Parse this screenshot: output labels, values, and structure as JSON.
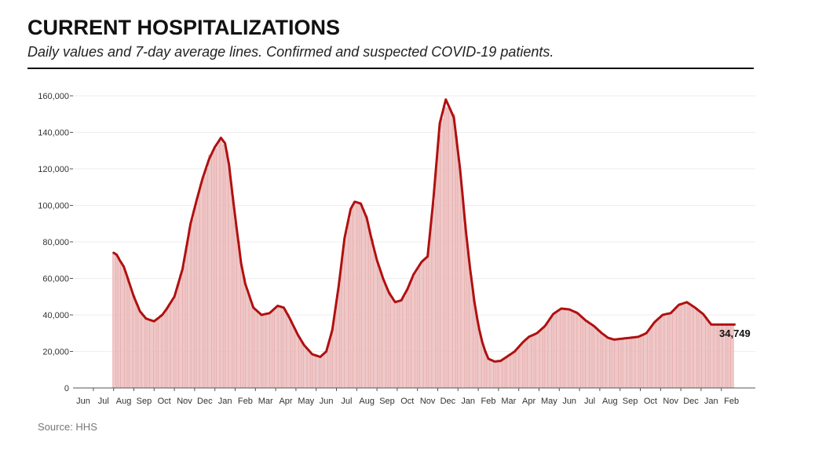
{
  "header": {
    "title": "CURRENT HOSPITALIZATIONS",
    "subtitle": "Daily values and 7-day average lines. Confirmed and suspected COVID-19 patients."
  },
  "footer": {
    "source": "Source: HHS"
  },
  "colors": {
    "line": "#b01010",
    "bars": "#f0c8c8",
    "bar_stroke": "#d98a8a",
    "grid": "#eeeeee"
  },
  "chart_data": {
    "type": "area",
    "title": "CURRENT HOSPITALIZATIONS",
    "xlabel": "",
    "ylabel": "",
    "ylim": [
      0,
      160000
    ],
    "yticks": [
      0,
      20000,
      40000,
      60000,
      80000,
      100000,
      120000,
      140000,
      160000
    ],
    "ytick_labels": [
      "0",
      "20,000",
      "40,000",
      "60,000",
      "80,000",
      "100,000",
      "120,000",
      "140,000",
      "160,000"
    ],
    "x_ticks": [
      "Jun",
      "Jul",
      "Aug",
      "Sep",
      "Oct",
      "Nov",
      "Dec",
      "Jan",
      "Feb",
      "Mar",
      "Apr",
      "May",
      "Jun",
      "Jul",
      "Aug",
      "Sep",
      "Oct",
      "Nov",
      "Dec",
      "Jan",
      "Feb",
      "Mar",
      "Apr",
      "May",
      "Jun",
      "Jul",
      "Aug",
      "Sep",
      "Oct",
      "Nov",
      "Dec",
      "Jan",
      "Feb"
    ],
    "x_unit": "month index (0 = Jun 2020)",
    "grid": true,
    "series": [
      {
        "x": [
          1.5,
          1.65,
          1.8,
          2.0,
          2.2,
          2.5,
          2.8,
          3.1,
          3.5,
          3.9,
          4.1,
          4.5,
          4.9,
          5.3,
          5.6,
          5.9,
          6.2,
          6.5,
          6.8,
          7.0,
          7.2,
          7.4,
          7.6,
          7.8,
          8.0,
          8.4,
          8.8,
          9.2,
          9.6,
          9.9,
          10.2,
          10.6,
          10.9,
          11.3,
          11.7,
          12.0,
          12.3,
          12.6,
          12.9,
          13.2,
          13.4,
          13.7,
          14.0,
          14.2,
          14.5,
          14.8,
          15.1,
          15.4,
          15.7,
          16.0,
          16.3,
          16.7,
          17.0,
          17.3,
          17.6,
          17.9,
          18.3,
          18.6,
          18.9,
          19.1,
          19.3,
          19.45,
          19.55,
          19.7,
          19.85,
          20.0,
          20.3,
          20.6,
          20.9,
          21.3,
          21.7,
          22.0,
          22.4,
          22.8,
          23.2,
          23.6,
          24.0,
          24.4,
          24.8,
          25.2,
          25.6,
          25.9,
          26.2,
          26.6,
          27.0,
          27.4,
          27.8,
          28.2,
          28.6,
          29.0,
          29.4,
          29.8,
          30.2,
          30.6,
          31.0,
          31.2,
          31.4,
          31.55,
          31.7,
          31.8,
          31.95,
          32.15
        ],
        "y": [
          74000,
          73000,
          70000,
          66500,
          60000,
          50000,
          42000,
          38000,
          36500,
          40000,
          43000,
          50000,
          65000,
          90000,
          103000,
          115000,
          125000,
          132000,
          137000,
          134000,
          122000,
          103000,
          85000,
          68000,
          57000,
          44000,
          40000,
          41000,
          45000,
          44000,
          38000,
          29000,
          23500,
          18500,
          17000,
          20000,
          32000,
          55000,
          82000,
          98000,
          102000,
          101000,
          93000,
          83000,
          70000,
          60000,
          52000,
          47000,
          48000,
          54000,
          62000,
          69000,
          72000,
          105000,
          145000,
          158000,
          148000,
          120000,
          85000,
          65000,
          48000,
          38000,
          32000,
          25000,
          20000,
          16000,
          14500,
          14800,
          17000,
          20000,
          25000,
          28000,
          30000,
          34000,
          40500,
          43500,
          43000,
          41000,
          37000,
          34000,
          30000,
          27500,
          26500,
          27000,
          27500,
          28000,
          30000,
          36000,
          40000,
          41000,
          45500,
          47000,
          44000,
          40500,
          34749,
          34749,
          34749,
          34749,
          34749,
          34749,
          34749,
          34749
        ],
        "name": ""
      }
    ],
    "last_value_label": "34,749"
  }
}
